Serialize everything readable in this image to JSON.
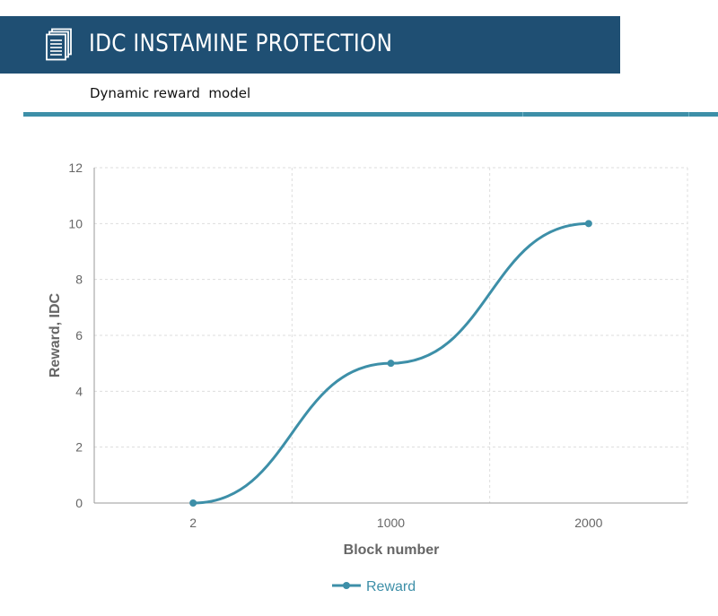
{
  "header": {
    "title": "IDC INSTAMINE PROTECTION",
    "icon": "document-stack-icon",
    "background": "#1f4f73"
  },
  "subtitle": "Dynamic reward  model",
  "accent_color": "#3d8fa8",
  "chart_data": {
    "type": "line",
    "title": "",
    "xlabel": "Block number",
    "ylabel": "Reward, IDC",
    "categories": [
      "2",
      "1000",
      "2000"
    ],
    "series": [
      {
        "name": "Reward",
        "values": [
          0,
          5,
          10
        ],
        "color": "#3d8fa8",
        "smooth": true
      }
    ],
    "ylim": [
      0,
      12
    ],
    "yticks": [
      "0",
      "2",
      "4",
      "6",
      "8",
      "10",
      "12"
    ],
    "grid": true,
    "legend": "bottom-center"
  }
}
